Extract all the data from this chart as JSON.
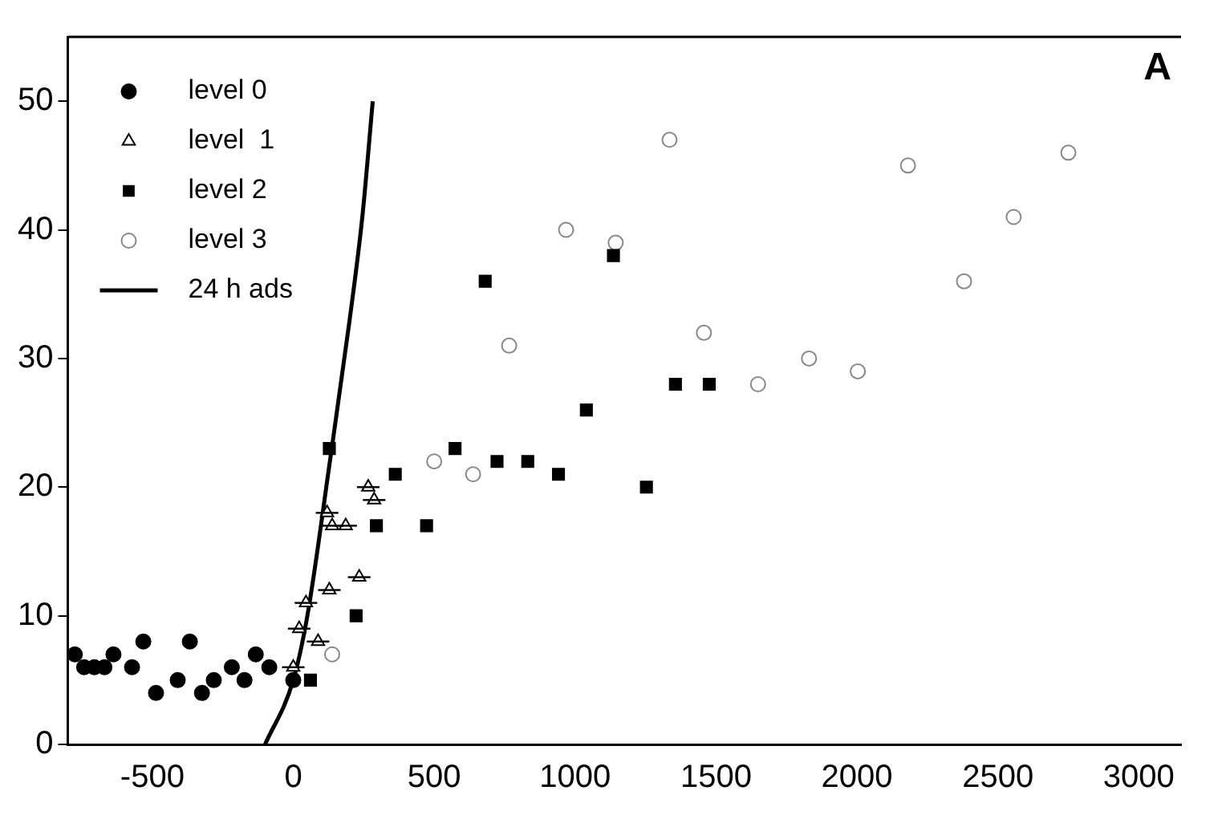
{
  "chart_data": {
    "type": "scatter",
    "annotations": [
      "A"
    ],
    "xlim": [
      -800,
      3150
    ],
    "xticks": [
      -500,
      0,
      500,
      1000,
      1500,
      2000,
      2500,
      3000
    ],
    "ylim": [
      0,
      55
    ],
    "yticks": [
      0,
      10,
      20,
      30,
      40,
      50
    ],
    "grid": false,
    "legend": "top left",
    "series": [
      {
        "name": "level 0",
        "color": "#000000",
        "marker": "circle",
        "x": [
          -775,
          -742,
          -706,
          -670,
          -638,
          -572,
          -532,
          -487,
          -410,
          -367,
          -324,
          -282,
          -218,
          -173,
          -133,
          -85,
          0
        ],
        "values": [
          7,
          6,
          6,
          6,
          7,
          6,
          8,
          4,
          5,
          8,
          4,
          5,
          6,
          5,
          7,
          6,
          5
        ]
      },
      {
        "name": "level  1",
        "color": "#000000",
        "marker": "triangle",
        "x": [
          0,
          21,
          45,
          88,
          120,
          128,
          138,
          186,
          234,
          266,
          287
        ],
        "values": [
          6,
          9,
          11,
          8,
          18,
          12,
          17,
          17,
          13,
          20,
          19
        ],
        "xerrors": [
          40,
          40,
          40,
          40,
          40,
          40,
          40,
          40,
          40,
          40,
          40
        ]
      },
      {
        "name": "level 2",
        "color": "#000000",
        "marker": "square",
        "x": [
          61,
          128,
          223,
          295,
          362,
          473,
          574,
          681,
          723,
          832,
          941,
          1040,
          1136,
          1253,
          1356,
          1476
        ],
        "values": [
          5,
          23,
          10,
          17,
          21,
          17,
          23,
          36,
          22,
          22,
          21,
          26,
          38,
          20,
          28,
          28
        ]
      },
      {
        "name": "level 3",
        "color": "#888888",
        "marker": "circle",
        "x": [
          138,
          500,
          638,
          766,
          968,
          1144,
          1335,
          1457,
          1649,
          1830,
          2003,
          2181,
          2380,
          2556,
          2750
        ],
        "values": [
          7,
          22,
          21,
          31,
          40,
          39,
          47,
          32,
          28,
          30,
          29,
          45,
          36,
          41,
          46
        ]
      },
      {
        "name": "24 h ads",
        "type": "line",
        "color": "#000000",
        "marker": "none",
        "line_style": "solid",
        "x": [
          -100,
          0,
          50,
          130,
          200,
          245,
          282
        ],
        "values": [
          0,
          5,
          10,
          22,
          33,
          41,
          50
        ]
      }
    ]
  }
}
